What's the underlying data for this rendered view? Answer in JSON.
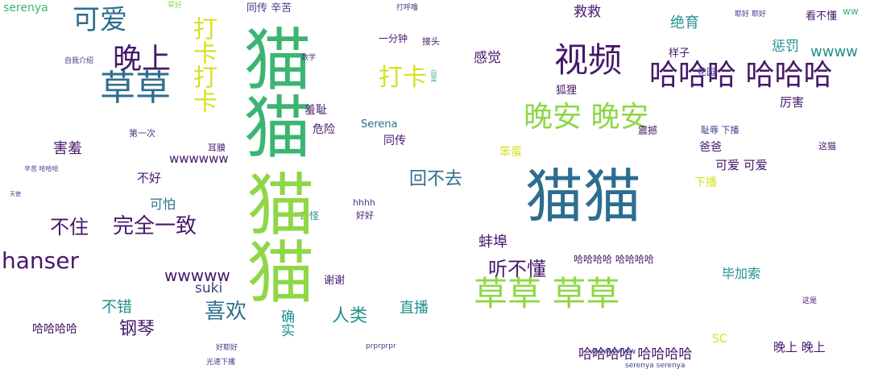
{
  "palette": {
    "dark_purple": "#46186b",
    "purple": "#3f3d8a",
    "teal_blue": "#2d6e8e",
    "teal": "#22908c",
    "green": "#3cb572",
    "lime": "#8fd745",
    "yellow": "#d6e127"
  },
  "words": [
    {
      "text": "serenya",
      "color": "#3cb572",
      "size": 14
    },
    {
      "text": "草好",
      "color": "#8fd745",
      "size": 9
    },
    {
      "text": "同传 辛苦",
      "color": "#3f3d8a",
      "size": 13
    },
    {
      "text": "打呼噜",
      "color": "#3f3d8a",
      "size": 9
    },
    {
      "text": "救救",
      "color": "#46186b",
      "size": 17
    },
    {
      "text": "耶好 耶好",
      "color": "#3f3d8a",
      "size": 9
    },
    {
      "text": "看不懂",
      "color": "#46186b",
      "size": 13
    },
    {
      "text": "ww",
      "color": "#3cb572",
      "size": 12
    },
    {
      "text": "可爱",
      "color": "#2d6e8e",
      "size": 34
    },
    {
      "text": "绝育",
      "color": "#22908c",
      "size": 18
    },
    {
      "text": "晚上",
      "color": "#46186b",
      "size": 36
    },
    {
      "text": "打卡打卡",
      "color": "#d6e127",
      "size": 30
    },
    {
      "text": "视频",
      "color": "#46186b",
      "size": 42
    },
    {
      "text": "惩罚",
      "color": "#22908c",
      "size": 17
    },
    {
      "text": "wwww",
      "color": "#22908c",
      "size": 18
    },
    {
      "text": "草草",
      "color": "#2d6e8e",
      "size": 44
    },
    {
      "text": "猫猫",
      "color": "#3cb572",
      "size": 84
    },
    {
      "text": "哈哈哈 哈哈哈",
      "color": "#46186b",
      "size": 36
    },
    {
      "text": "打卡",
      "color": "#d6e127",
      "size": 30
    },
    {
      "text": "感觉",
      "color": "#46186b",
      "size": 17
    },
    {
      "text": "样子",
      "color": "#46186b",
      "size": 13
    },
    {
      "text": "花园",
      "color": "#3f3d8a",
      "size": 11
    },
    {
      "text": "厉害",
      "color": "#46186b",
      "size": 15
    },
    {
      "text": "晚安 晚安",
      "color": "#8fd745",
      "size": 36
    },
    {
      "text": "Serena",
      "color": "#2d6e8e",
      "size": 13
    },
    {
      "text": "狐狸",
      "color": "#46186b",
      "size": 13
    },
    {
      "text": "羞耻",
      "color": "#46186b",
      "size": 14
    },
    {
      "text": "危险",
      "color": "#46186b",
      "size": 14
    },
    {
      "text": "同传",
      "color": "#46186b",
      "size": 14
    },
    {
      "text": "害羞",
      "color": "#46186b",
      "size": 18
    },
    {
      "text": "第一次",
      "color": "#3f3d8a",
      "size": 11
    },
    {
      "text": "耳膜",
      "color": "#46186b",
      "size": 11
    },
    {
      "text": "笨蛋",
      "color": "#d6e127",
      "size": 14
    },
    {
      "text": "震撼",
      "color": "#46186b",
      "size": 12
    },
    {
      "text": "耻辱 下播",
      "color": "#3f3d8a",
      "size": 11
    },
    {
      "text": "爸爸",
      "color": "#46186b",
      "size": 14
    },
    {
      "text": "这猫",
      "color": "#46186b",
      "size": 11
    },
    {
      "text": "wwwwww",
      "color": "#46186b",
      "size": 15
    },
    {
      "text": "回不去",
      "color": "#2d6e8e",
      "size": 22
    },
    {
      "text": "猫猫",
      "color": "#2d6e8e",
      "size": 72
    },
    {
      "text": "可爱 可爱",
      "color": "#46186b",
      "size": 15
    },
    {
      "text": "下播",
      "color": "#d6e127",
      "size": 14
    },
    {
      "text": "不好",
      "color": "#46186b",
      "size": 15
    },
    {
      "text": "可怕",
      "color": "#2d6e8e",
      "size": 16
    },
    {
      "text": "不住",
      "color": "#46186b",
      "size": 24
    },
    {
      "text": "完全一致",
      "color": "#46186b",
      "size": 26
    },
    {
      "text": "hhhh",
      "color": "#3f3d8a",
      "size": 11
    },
    {
      "text": "好好",
      "color": "#46186b",
      "size": 11
    },
    {
      "text": "奇怪",
      "color": "#22908c",
      "size": 12
    },
    {
      "text": "蚌埠",
      "color": "#46186b",
      "size": 18
    },
    {
      "text": "hanser",
      "color": "#46186b",
      "size": 28
    },
    {
      "text": "猫猫",
      "color": "#8fd745",
      "size": 84
    },
    {
      "text": "wwwww",
      "color": "#46186b",
      "size": 20
    },
    {
      "text": "听不懂",
      "color": "#46186b",
      "size": 24
    },
    {
      "text": "哈哈哈哈 哈哈哈哈",
      "color": "#46186b",
      "size": 12
    },
    {
      "text": "毕加索",
      "color": "#22908c",
      "size": 16
    },
    {
      "text": "suki",
      "color": "#3f3d8a",
      "size": 17
    },
    {
      "text": "谢谢",
      "color": "#46186b",
      "size": 13
    },
    {
      "text": "草草 草草",
      "color": "#8fd745",
      "size": 42
    },
    {
      "text": "不错",
      "color": "#22908c",
      "size": 19
    },
    {
      "text": "喜欢",
      "color": "#2d6e8e",
      "size": 26
    },
    {
      "text": "直播",
      "color": "#22908c",
      "size": 18
    },
    {
      "text": "人类",
      "color": "#22908c",
      "size": 22
    },
    {
      "text": "钢琴",
      "color": "#46186b",
      "size": 22
    },
    {
      "text": "哈哈哈哈",
      "color": "#46186b",
      "size": 14
    },
    {
      "text": "确实",
      "color": "#22908c",
      "size": 17
    },
    {
      "text": "SC",
      "color": "#d6e127",
      "size": 14
    },
    {
      "text": "晚上 晚上",
      "color": "#46186b",
      "size": 15
    },
    {
      "text": "哈哈哈哈 哈哈哈哈",
      "color": "#46186b",
      "size": 17
    },
    {
      "text": "prprprpr",
      "color": "#3f3d8a",
      "size": 9
    },
    {
      "text": "wwwwwww",
      "color": "#3f3d8a",
      "size": 10
    },
    {
      "text": "serenya serenya",
      "color": "#3f3d8a",
      "size": 9
    },
    {
      "text": "这是",
      "color": "#46186b",
      "size": 9
    },
    {
      "text": "好耶好",
      "color": "#3f3d8a",
      "size": 9
    },
    {
      "text": "光速下播",
      "color": "#3f3d8a",
      "size": 9
    },
    {
      "text": "自我介绍",
      "color": "#3f3d8a",
      "size": 9
    },
    {
      "text": "数学",
      "color": "#3f3d8a",
      "size": 9
    },
    {
      "text": "一分钟",
      "color": "#46186b",
      "size": 12
    },
    {
      "text": "接头",
      "color": "#46186b",
      "size": 11
    },
    {
      "text": "白菜",
      "color": "#3cb572",
      "size": 8
    },
    {
      "text": "辛苦 哈哈哈",
      "color": "#3f3d8a",
      "size": 8
    },
    {
      "text": "天使",
      "color": "#3f3d8a",
      "size": 7
    }
  ]
}
